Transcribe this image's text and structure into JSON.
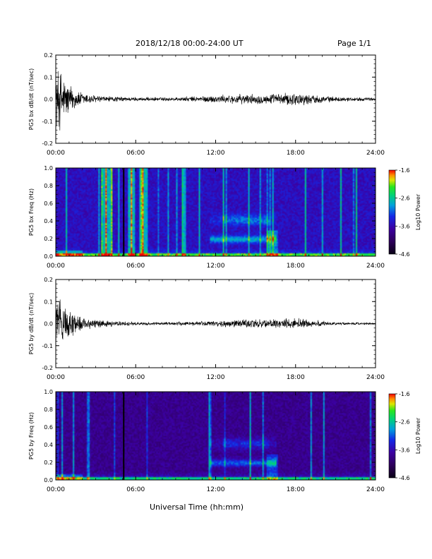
{
  "header": {
    "date_range": "2018/12/18   00:00-24:00 UT",
    "page": "Page 1/1"
  },
  "x_axis": {
    "label": "Universal Time (hh:mm)",
    "ticks": [
      "00:00",
      "06:00",
      "12:00",
      "18:00",
      "24:00"
    ]
  },
  "colorbar": {
    "label": "Log10 Power",
    "ticks": [
      "-1.6",
      "-2.6",
      "-3.6",
      "-4.6"
    ],
    "range": [
      -4.6,
      -1.6
    ]
  },
  "chart_data": [
    {
      "type": "line",
      "ylabel": "PG5 bx dB/dt (nT/sec)",
      "ylim": [
        -0.2,
        0.2
      ],
      "yticks": [
        "0.2",
        "0.1",
        "0.0",
        "-0.1",
        "-0.2"
      ],
      "xlim_hours": [
        0,
        24
      ],
      "amplitude_envelope": {
        "x_hours": [
          0,
          0.3,
          0.6,
          1.0,
          1.5,
          2.0,
          3.0,
          4.0,
          6.0,
          9.0,
          12.0,
          14.0,
          16.0,
          17.0,
          18.0,
          19.0,
          21.0,
          24.0
        ],
        "amp": [
          0.15,
          0.17,
          0.12,
          0.08,
          0.05,
          0.035,
          0.02,
          0.015,
          0.01,
          0.01,
          0.02,
          0.025,
          0.025,
          0.03,
          0.035,
          0.025,
          0.012,
          0.008
        ]
      }
    },
    {
      "type": "heatmap",
      "ylabel": "PG5 bx Freq (Hz)",
      "ylim": [
        0,
        1.0
      ],
      "yticks": [
        "1.0",
        "0.8",
        "0.6",
        "0.4",
        "0.2",
        "0.0"
      ],
      "xlim_hours": [
        0,
        24
      ],
      "color_range": [
        -4.6,
        -1.6
      ]
    },
    {
      "type": "line",
      "ylabel": "PG5 by dB/dt (nT/sec)",
      "ylim": [
        -0.2,
        0.2
      ],
      "yticks": [
        "0.2",
        "0.1",
        "0.0",
        "-0.1",
        "-0.2"
      ],
      "xlim_hours": [
        0,
        24
      ],
      "amplitude_envelope": {
        "x_hours": [
          0,
          0.3,
          0.6,
          1.0,
          1.5,
          2.0,
          3.0,
          4.0,
          6.0,
          9.0,
          12.0,
          14.0,
          16.0,
          17.0,
          18.0,
          19.0,
          21.0,
          24.0
        ],
        "amp": [
          0.13,
          0.15,
          0.12,
          0.08,
          0.05,
          0.035,
          0.02,
          0.015,
          0.008,
          0.008,
          0.015,
          0.02,
          0.02,
          0.025,
          0.03,
          0.02,
          0.008,
          0.005
        ]
      }
    },
    {
      "type": "heatmap",
      "ylabel": "PG5 by Freq (Hz)",
      "ylim": [
        0,
        1.0
      ],
      "yticks": [
        "1.0",
        "0.8",
        "0.6",
        "0.4",
        "0.2",
        "0.0"
      ],
      "xlim_hours": [
        0,
        24
      ],
      "color_range": [
        -4.6,
        -1.6
      ]
    }
  ]
}
